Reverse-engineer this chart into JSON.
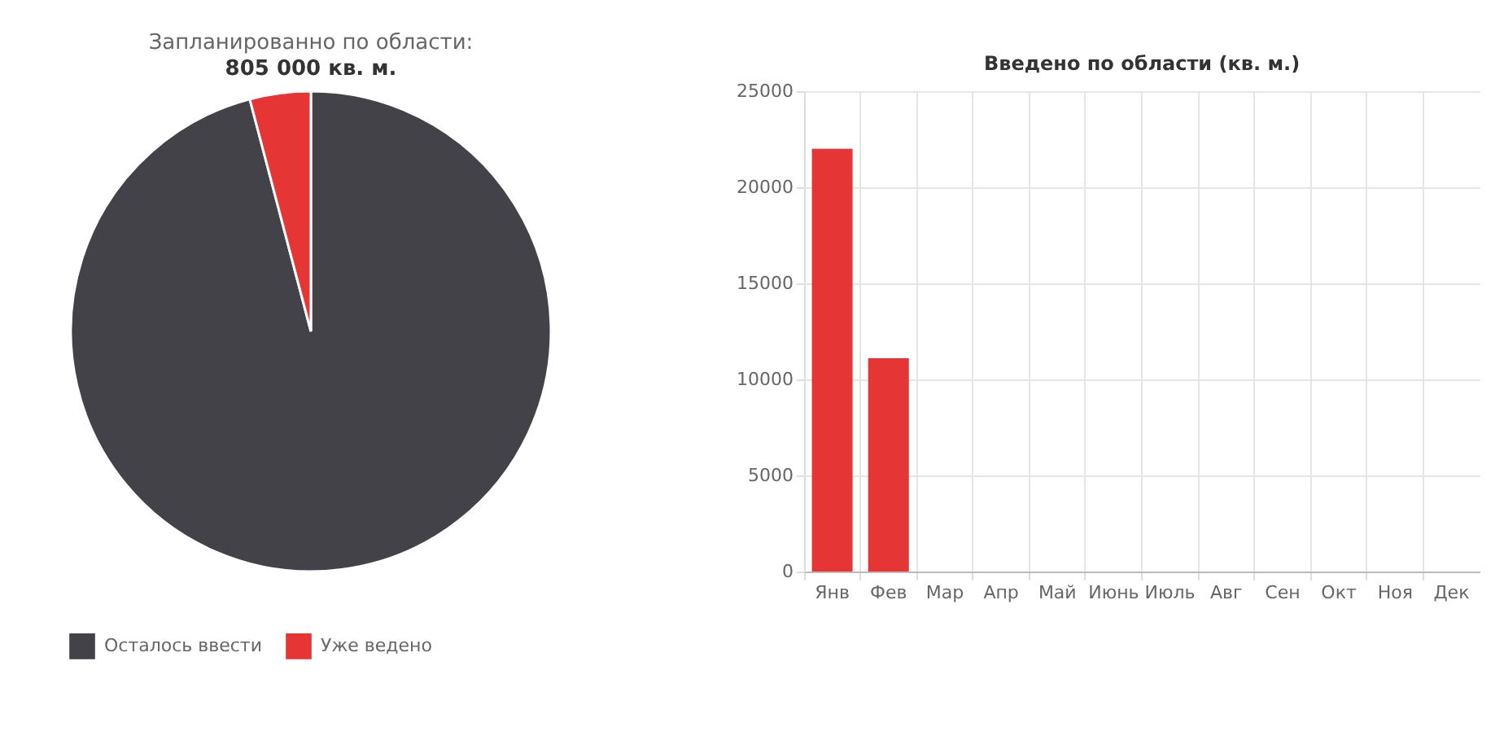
{
  "chart_data": [
    {
      "type": "pie",
      "title": "Запланированно по области:",
      "subtitle": "805 000 кв. м.",
      "categories": [
        "Осталось ввести",
        "Уже ведено"
      ],
      "values": [
        95.9,
        4.1
      ],
      "colors": [
        "#434248",
        "#e53535"
      ],
      "legend": "bottom"
    },
    {
      "type": "bar",
      "title": "Введено по области (кв. м.)",
      "categories": [
        "Янв",
        "Фев",
        "Мар",
        "Апр",
        "Май",
        "Июнь",
        "Июль",
        "Авг",
        "Сен",
        "Окт",
        "Ноя",
        "Дек"
      ],
      "values": [
        22000,
        11100,
        0,
        0,
        0,
        0,
        0,
        0,
        0,
        0,
        0,
        0
      ],
      "color": "#e53535",
      "ylim": [
        0,
        25000
      ],
      "yticks": [
        0,
        5000,
        10000,
        15000,
        20000,
        25000
      ],
      "grid": true
    }
  ]
}
